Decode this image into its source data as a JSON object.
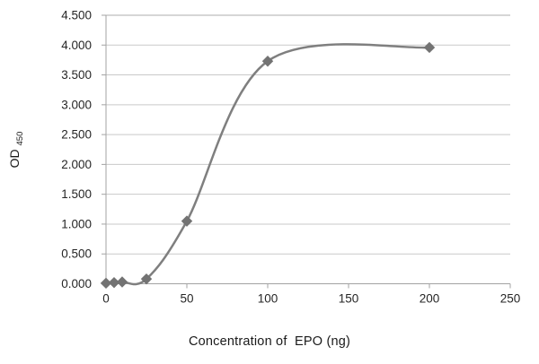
{
  "chart_data": {
    "type": "line",
    "title": "",
    "xlabel": "Concentration of  EPO (ng)",
    "ylabel": "OD",
    "ylabel_subscript": "450",
    "x": [
      0,
      5,
      10,
      25,
      50,
      100,
      200
    ],
    "y": [
      0.01,
      0.02,
      0.03,
      0.08,
      1.05,
      3.73,
      3.96
    ],
    "xlim": [
      0,
      250
    ],
    "ylim": [
      0,
      4.5
    ],
    "xticks": [
      0,
      50,
      100,
      150,
      200,
      250
    ],
    "xtick_labels": [
      "0",
      "50",
      "100",
      "150",
      "200",
      "250"
    ],
    "yticks": [
      0,
      0.5,
      1,
      1.5,
      2,
      2.5,
      3,
      3.5,
      4,
      4.5
    ],
    "ytick_labels": [
      "0.000",
      "0.500",
      "1.000",
      "1.500",
      "2.000",
      "2.500",
      "3.000",
      "3.500",
      "4.000",
      "4.500"
    ],
    "grid": "horizontal",
    "legend": "none",
    "line_smooth": true,
    "marker": "diamond",
    "line_color": "#7F7F7F",
    "marker_color": "#737373",
    "gridline_color": "#C9C9C9",
    "top_gridline_color": "#D6D6D6",
    "axis_color": "#A3A3A3",
    "text_color": "#262626",
    "background": "#FFFFFF"
  }
}
